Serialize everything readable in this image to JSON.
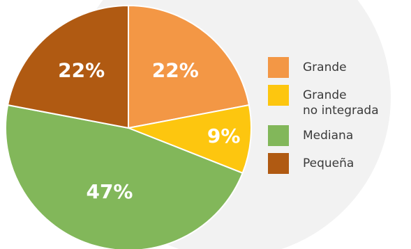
{
  "chart_data": {
    "type": "pie",
    "title": "",
    "slices": [
      {
        "name": "Grande",
        "value": 22,
        "label": "22%",
        "color": "#F39745"
      },
      {
        "name": "Grande\nno integrada",
        "value": 9,
        "label": "9%",
        "color": "#FDC60F"
      },
      {
        "name": "Mediana",
        "value": 47,
        "label": "47%",
        "color": "#82B75A"
      },
      {
        "name": "Pequeña",
        "value": 22,
        "label": "22%",
        "color": "#B05A12"
      }
    ],
    "legend_position": "right",
    "background_disc_color": "#F2F2F2"
  }
}
